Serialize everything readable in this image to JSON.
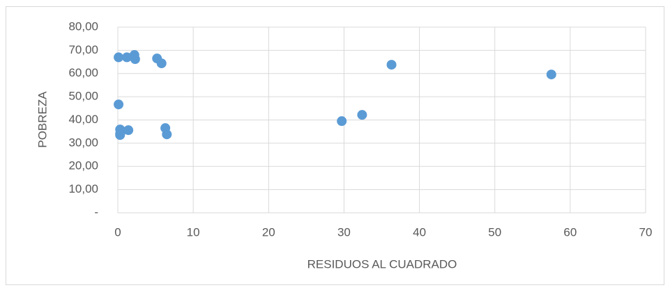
{
  "chart_data": {
    "type": "scatter",
    "x_label": "RESIDUOS AL CUADRADO",
    "y_label": "POBREZA",
    "x": [
      0.1,
      1.2,
      2.2,
      2.3,
      5.2,
      5.8,
      0.1,
      0.3,
      0.5,
      0.3,
      0.3,
      1.4,
      6.3,
      6.5,
      29.7,
      32.4,
      36.3,
      57.5
    ],
    "y": [
      67.0,
      67.0,
      68.0,
      66.2,
      66.5,
      64.4,
      46.7,
      35.9,
      35.3,
      34.1,
      33.5,
      35.6,
      36.5,
      33.8,
      39.5,
      42.2,
      63.8,
      59.6
    ],
    "color": "#5b9bd5",
    "xlim": [
      0,
      70
    ],
    "xticks": [
      0,
      10,
      20,
      30,
      40,
      50,
      60,
      70
    ],
    "ylim": [
      0,
      80
    ],
    "yticks": [
      {
        "value": 0,
        "label": "-"
      },
      {
        "value": 10,
        "label": "10,00"
      },
      {
        "value": 20,
        "label": "20,00"
      },
      {
        "value": 30,
        "label": "30,00"
      },
      {
        "value": 40,
        "label": "40,00"
      },
      {
        "value": 50,
        "label": "50,00"
      },
      {
        "value": 60,
        "label": "60,00"
      },
      {
        "value": 70,
        "label": "70,00"
      },
      {
        "value": 80,
        "label": "80,00"
      }
    ],
    "grid": true
  }
}
